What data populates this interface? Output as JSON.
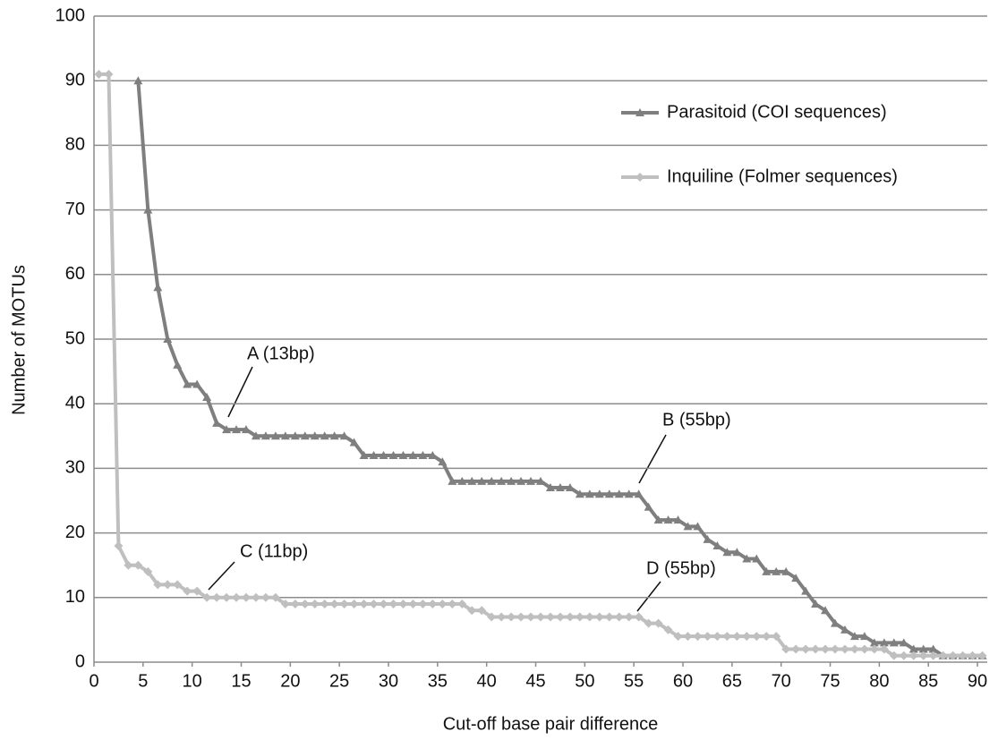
{
  "chart_data": {
    "type": "line",
    "x_label": "Cut-off base pair difference",
    "y_label": "Number of MOTUs",
    "x": [
      0.5,
      1.5,
      2.5,
      3.5,
      4.5,
      5.5,
      6.5,
      7.5,
      8.5,
      9.5,
      10.5,
      11.5,
      12.5,
      13.5,
      14.5,
      15.5,
      16.5,
      17.5,
      18.5,
      19.5,
      20.5,
      21.5,
      22.5,
      23.5,
      24.5,
      25.5,
      26.5,
      27.5,
      28.5,
      29.5,
      30.5,
      31.5,
      32.5,
      33.5,
      34.5,
      35.5,
      36.5,
      37.5,
      38.5,
      39.5,
      40.5,
      41.5,
      42.5,
      43.5,
      44.5,
      45.5,
      46.5,
      47.5,
      48.5,
      49.5,
      50.5,
      51.5,
      52.5,
      53.5,
      54.5,
      55.5,
      56.5,
      57.5,
      58.5,
      59.5,
      60.5,
      61.5,
      62.5,
      63.5,
      64.5,
      65.5,
      66.5,
      67.5,
      68.5,
      69.5,
      70.5,
      71.5,
      72.5,
      73.5,
      74.5,
      75.5,
      76.5,
      77.5,
      78.5,
      79.5,
      80.5,
      81.5,
      82.5,
      83.5,
      84.5,
      85.5,
      86.5,
      87.5,
      88.5,
      89.5,
      90.5
    ],
    "series": [
      {
        "name": "Parasitoid (COI sequences)",
        "color": "#7f7f7f",
        "marker": "triangle",
        "values": [
          null,
          null,
          null,
          null,
          90,
          70,
          58,
          50,
          46,
          43,
          43,
          41,
          37,
          36,
          36,
          36,
          35,
          35,
          35,
          35,
          35,
          35,
          35,
          35,
          35,
          35,
          34,
          32,
          32,
          32,
          32,
          32,
          32,
          32,
          32,
          31,
          28,
          28,
          28,
          28,
          28,
          28,
          28,
          28,
          28,
          28,
          27,
          27,
          27,
          26,
          26,
          26,
          26,
          26,
          26,
          26,
          24,
          22,
          22,
          22,
          21,
          21,
          19,
          18,
          17,
          17,
          16,
          16,
          14,
          14,
          14,
          13,
          11,
          9,
          8,
          6,
          5,
          4,
          4,
          3,
          3,
          3,
          3,
          2,
          2,
          2,
          1,
          1,
          1,
          1,
          1
        ]
      },
      {
        "name": "Inquiline (Folmer sequences)",
        "color": "#bfbfbf",
        "marker": "diamond",
        "values": [
          91,
          91,
          18,
          15,
          15,
          14,
          12,
          12,
          12,
          11,
          11,
          10,
          10,
          10,
          10,
          10,
          10,
          10,
          10,
          9,
          9,
          9,
          9,
          9,
          9,
          9,
          9,
          9,
          9,
          9,
          9,
          9,
          9,
          9,
          9,
          9,
          9,
          9,
          8,
          8,
          7,
          7,
          7,
          7,
          7,
          7,
          7,
          7,
          7,
          7,
          7,
          7,
          7,
          7,
          7,
          7,
          6,
          6,
          5,
          4,
          4,
          4,
          4,
          4,
          4,
          4,
          4,
          4,
          4,
          4,
          2,
          2,
          2,
          2,
          2,
          2,
          2,
          2,
          2,
          2,
          2,
          1,
          1,
          1,
          1,
          1,
          1,
          1,
          1,
          1,
          1
        ]
      }
    ],
    "annotations": [
      "A (13bp)",
      "B (55bp)",
      "C (11bp)",
      "D (55bp)"
    ],
    "xlim": [
      0,
      91
    ],
    "ylim": [
      0,
      100
    ],
    "xticks": [
      0,
      5,
      10,
      15,
      20,
      25,
      30,
      35,
      40,
      45,
      50,
      55,
      60,
      65,
      70,
      75,
      80,
      85,
      90
    ],
    "yticks": [
      0,
      10,
      20,
      30,
      40,
      50,
      60,
      70,
      80,
      90,
      100
    ],
    "grid": true
  }
}
